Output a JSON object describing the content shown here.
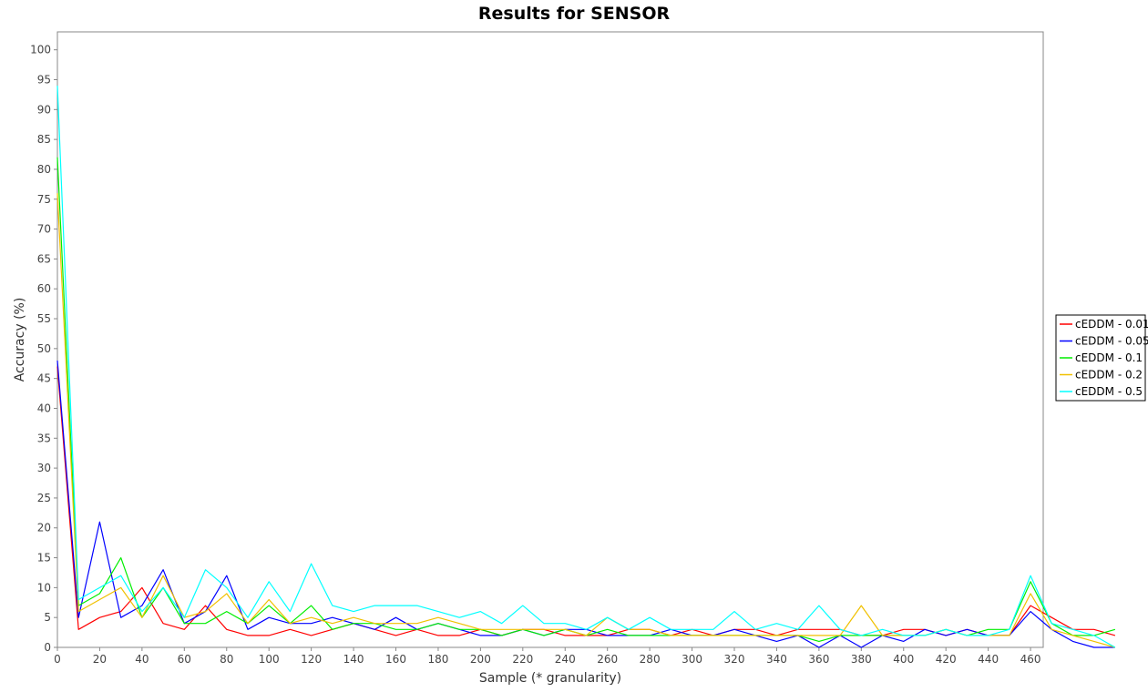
{
  "chart_data": {
    "type": "line",
    "title": "Results for SENSOR",
    "xlabel": "Sample (* granularity)",
    "ylabel": "Accuracy (%)",
    "xlim": [
      0,
      466
    ],
    "ylim": [
      0,
      103
    ],
    "x_ticks": [
      0,
      20,
      40,
      60,
      80,
      100,
      120,
      140,
      160,
      180,
      200,
      220,
      240,
      260,
      280,
      300,
      320,
      340,
      360,
      380,
      400,
      420,
      440,
      460
    ],
    "y_ticks": [
      0,
      5,
      10,
      15,
      20,
      25,
      30,
      35,
      40,
      45,
      50,
      55,
      60,
      65,
      70,
      75,
      80,
      85,
      90,
      95,
      100
    ],
    "grid": false,
    "legend_position": "right",
    "x_step": 10,
    "series": [
      {
        "name": "cEDDM - 0.01",
        "color": "#ff0000",
        "x_start": 0,
        "values": [
          47,
          3,
          5,
          6,
          10,
          4,
          3,
          7,
          3,
          2,
          2,
          3,
          2,
          3,
          4,
          3,
          2,
          3,
          2,
          2,
          3,
          2,
          3,
          3,
          2,
          2,
          2,
          3,
          3,
          2,
          3,
          2,
          3,
          3,
          2,
          3,
          3,
          3,
          2,
          2,
          3,
          3,
          2,
          3,
          2,
          2,
          7,
          5,
          3,
          3,
          2
        ]
      },
      {
        "name": "cEDDM - 0.05",
        "color": "#0000ff",
        "x_start": 0,
        "values": [
          48,
          5,
          21,
          5,
          7,
          13,
          4,
          6,
          12,
          3,
          5,
          4,
          4,
          5,
          4,
          3,
          5,
          3,
          4,
          3,
          2,
          2,
          3,
          2,
          3,
          3,
          2,
          2,
          2,
          3,
          2,
          2,
          3,
          2,
          1,
          2,
          0,
          2,
          0,
          2,
          1,
          3,
          2,
          3,
          2,
          2,
          6,
          3,
          1,
          0,
          0
        ]
      },
      {
        "name": "cEDDM - 0.1",
        "color": "#00ee00",
        "x_start": 0,
        "values": [
          82,
          7,
          9,
          15,
          5,
          10,
          4,
          4,
          6,
          4,
          7,
          4,
          7,
          3,
          4,
          4,
          3,
          3,
          4,
          3,
          3,
          2,
          3,
          2,
          3,
          2,
          3,
          2,
          2,
          2,
          2,
          2,
          2,
          2,
          2,
          2,
          1,
          2,
          2,
          2,
          2,
          2,
          3,
          2,
          3,
          3,
          11,
          4,
          2,
          2,
          3
        ]
      },
      {
        "name": "cEDDM - 0.2",
        "color": "#f0c000",
        "x_start": 0,
        "values": [
          76,
          6,
          8,
          10,
          5,
          12,
          5,
          6,
          9,
          4,
          8,
          4,
          5,
          4,
          5,
          4,
          4,
          4,
          5,
          4,
          3,
          3,
          3,
          3,
          3,
          2,
          5,
          3,
          3,
          2,
          2,
          2,
          2,
          2,
          2,
          2,
          2,
          2,
          7,
          2,
          2,
          2,
          3,
          2,
          2,
          2,
          9,
          3,
          2,
          1,
          0
        ]
      },
      {
        "name": "cEDDM - 0.5",
        "color": "#00ffff",
        "x_start": 0,
        "values": [
          94,
          8,
          10,
          12,
          6,
          10,
          5,
          13,
          10,
          5,
          11,
          6,
          14,
          7,
          6,
          7,
          7,
          7,
          6,
          5,
          6,
          4,
          7,
          4,
          4,
          3,
          5,
          3,
          5,
          3,
          3,
          3,
          6,
          3,
          4,
          3,
          7,
          3,
          2,
          3,
          2,
          2,
          3,
          2,
          2,
          3,
          12,
          4,
          3,
          2,
          0
        ]
      }
    ]
  }
}
